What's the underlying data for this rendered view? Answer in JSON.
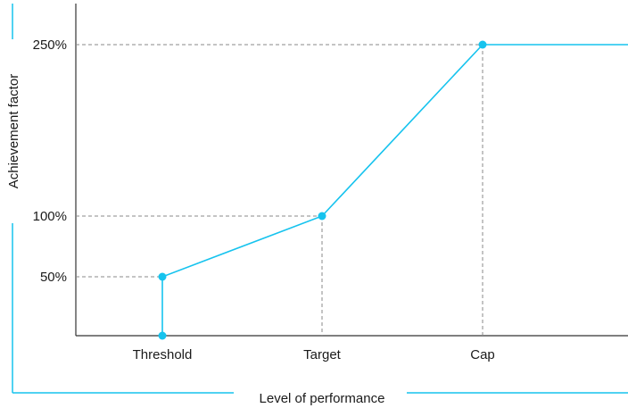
{
  "colors": {
    "accent": "#16c3ee",
    "axis": "#333333",
    "guide": "#888888",
    "text": "#1a1a1a"
  },
  "chart_data": {
    "type": "line",
    "xlabel": "Level of performance",
    "ylabel": "Achievement factor",
    "x_categories": [
      "Threshold",
      "Target",
      "Cap"
    ],
    "y_tick_labels": [
      "50%",
      "100%",
      "250%"
    ],
    "ylim": [
      0,
      250
    ],
    "grid": false,
    "series": [
      {
        "points": [
          {
            "x": "Threshold",
            "y": 0
          },
          {
            "x": "Threshold",
            "y": 50
          },
          {
            "x": "Target",
            "y": 100
          },
          {
            "x": "Cap",
            "y": 250
          }
        ],
        "continues_flat_after_cap": true
      }
    ]
  }
}
